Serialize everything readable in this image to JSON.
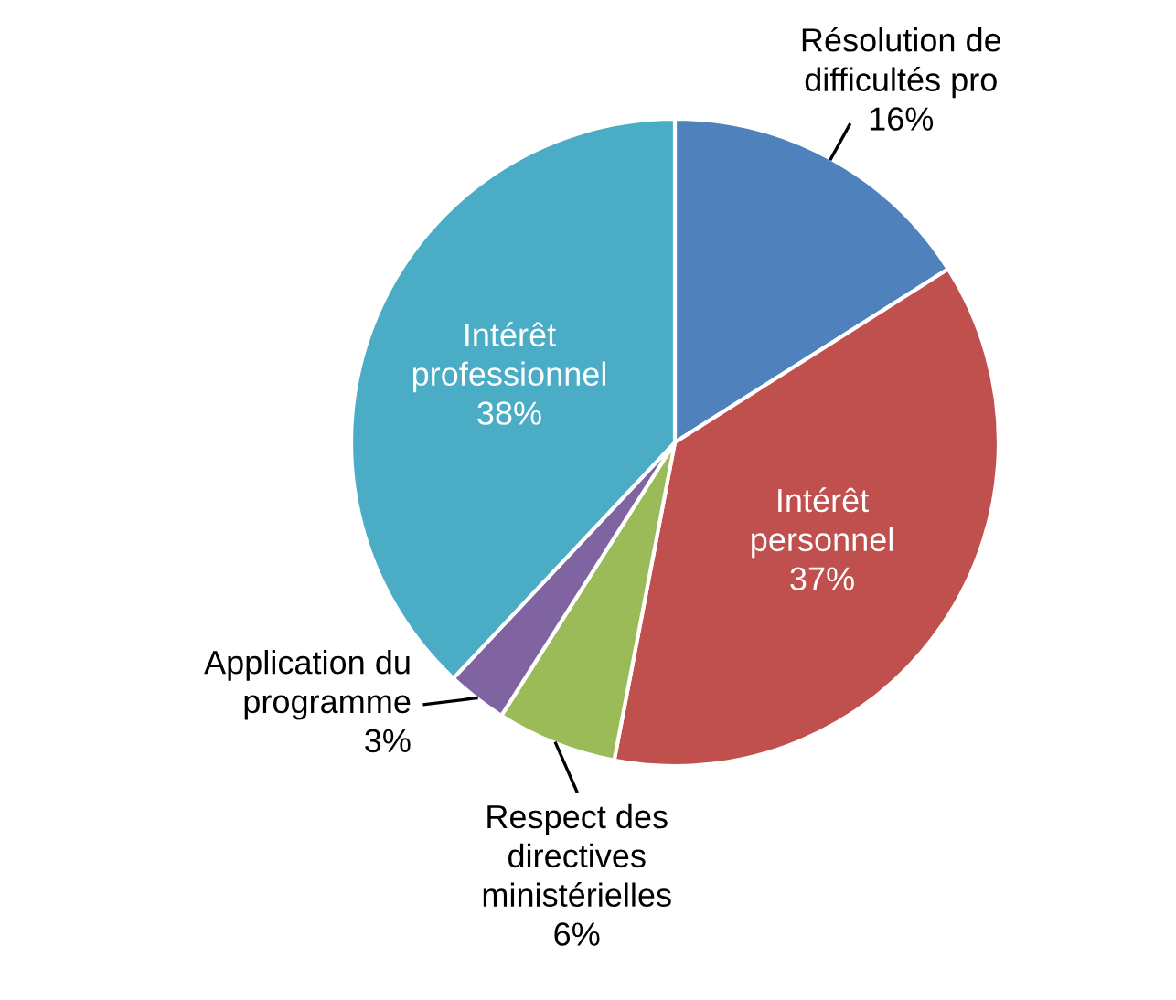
{
  "chart_data": {
    "type": "pie",
    "categories": [
      "Résolution de\ndifficultés pro",
      "Intérêt\npersonnel",
      "Respect des\ndirectives\nministérielles",
      "Application du\nprogramme",
      "Intérêt\nprofessionnel"
    ],
    "values": [
      16,
      37,
      6,
      3,
      38
    ],
    "colors": [
      "#4f81bd",
      "#c0504d",
      "#9bbb59",
      "#8064a2",
      "#4bacc6"
    ],
    "value_labels": [
      "16%",
      "37%",
      "6%",
      "3%",
      "38%"
    ],
    "legend": false
  }
}
